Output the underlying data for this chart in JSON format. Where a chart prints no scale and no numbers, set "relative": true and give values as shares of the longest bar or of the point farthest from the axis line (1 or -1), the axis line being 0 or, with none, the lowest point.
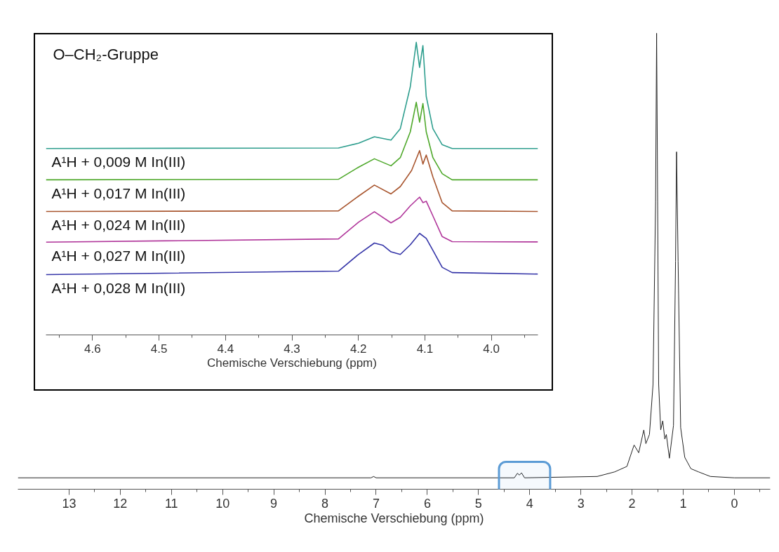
{
  "chart_data": [
    {
      "type": "line",
      "relative": true,
      "xlabel": "Chemische Verschiebung (ppm)",
      "xlim": [
        14.0,
        -0.7
      ],
      "tick_labels": "x",
      "xticks": [
        13,
        {
          "value": 12.5,
          "label": null
        },
        12,
        {
          "value": 11.5,
          "label": null
        },
        11,
        {
          "value": 10.5,
          "label": null
        },
        10,
        {
          "value": 9.5,
          "label": null
        },
        9,
        {
          "value": 8.5,
          "label": null
        },
        8,
        {
          "value": 7.5,
          "label": null
        },
        7,
        {
          "value": 6.5,
          "label": null
        },
        6,
        {
          "value": 5.5,
          "label": null
        },
        5,
        {
          "value": 4.5,
          "label": null
        },
        4,
        {
          "value": 3.5,
          "label": null
        },
        3,
        {
          "value": 2.5,
          "label": null
        },
        2,
        {
          "value": 1.5,
          "label": null
        },
        1,
        {
          "value": 0.5,
          "label": null
        },
        0,
        {
          "value": -0.5,
          "label": null
        }
      ],
      "bands": [
        {
          "axis": "x",
          "from": 4.6,
          "to": 3.6,
          "color": "#5b9bd5"
        }
      ],
      "series": [
        {
          "color": "#222222",
          "x": [
            14.0,
            7.1,
            7.05,
            7.0,
            4.3,
            4.24,
            4.2,
            4.16,
            4.1,
            2.68,
            2.34,
            2.1,
            1.96,
            1.87,
            1.77,
            1.73,
            1.66,
            1.59,
            1.54,
            1.52,
            1.5,
            1.48,
            1.44,
            1.4,
            1.36,
            1.33,
            1.27,
            1.19,
            1.15,
            1.13,
            1.1,
            1.05,
            0.97,
            0.85,
            0.7,
            0.47,
            0.0,
            -0.7
          ],
          "values": [
            0.025,
            0.025,
            0.028,
            0.025,
            0.025,
            0.035,
            0.031,
            0.036,
            0.025,
            0.028,
            0.038,
            0.05,
            0.097,
            0.08,
            0.13,
            0.1,
            0.12,
            0.23,
            0.63,
            1.0,
            0.63,
            0.23,
            0.13,
            0.15,
            0.11,
            0.12,
            0.068,
            0.14,
            0.5,
            0.74,
            0.5,
            0.135,
            0.07,
            0.045,
            0.038,
            0.028,
            0.025,
            0.025
          ]
        }
      ]
    },
    {
      "type": "line",
      "relative": true,
      "title": "O–CH₂-Gruppe",
      "xlabel": "Chemische Verschiebung (ppm)",
      "xlim": [
        4.67,
        3.93
      ],
      "tick_labels": "x",
      "xticks": [
        {
          "value": 4.65,
          "label": null
        },
        {
          "value": 4.6,
          "label": "4.6"
        },
        {
          "value": 4.55,
          "label": null
        },
        {
          "value": 4.5,
          "label": "4.5"
        },
        {
          "value": 4.45,
          "label": null
        },
        {
          "value": 4.4,
          "label": "4.4"
        },
        {
          "value": 4.35,
          "label": null
        },
        {
          "value": 4.3,
          "label": "4.3"
        },
        {
          "value": 4.25,
          "label": null
        },
        {
          "value": 4.2,
          "label": "4.2"
        },
        {
          "value": 4.15,
          "label": null
        },
        {
          "value": 4.1,
          "label": "4.1"
        },
        {
          "value": 4.05,
          "label": null
        },
        {
          "value": 4.0,
          "label": "4.0"
        },
        {
          "value": 3.95,
          "label": null
        }
      ],
      "series": [
        {
          "name": "A¹H + 0,009 M In(III)",
          "color": "#2e9e8e",
          "x": [
            4.67,
            4.23,
            4.2,
            4.176,
            4.151,
            4.137,
            4.122,
            4.113,
            4.108,
            4.103,
            4.098,
            4.088,
            4.074,
            4.059,
            3.93
          ],
          "values": [
            0.637,
            0.639,
            0.655,
            0.677,
            0.666,
            0.705,
            0.848,
            1.0,
            0.914,
            0.989,
            0.815,
            0.705,
            0.65,
            0.637,
            0.637
          ]
        },
        {
          "name": "A¹H + 0,017 M In(III)",
          "color": "#4ea82a",
          "x": [
            4.67,
            4.23,
            4.2,
            4.176,
            4.151,
            4.137,
            4.122,
            4.113,
            4.108,
            4.103,
            4.098,
            4.088,
            4.074,
            4.059,
            3.93
          ],
          "values": [
            0.53,
            0.532,
            0.573,
            0.602,
            0.578,
            0.606,
            0.694,
            0.795,
            0.727,
            0.791,
            0.694,
            0.606,
            0.551,
            0.53,
            0.53
          ]
        },
        {
          "name": "A¹H + 0,024 M In(III)",
          "color": "#a8552e",
          "x": [
            4.67,
            4.23,
            4.2,
            4.176,
            4.151,
            4.137,
            4.12,
            4.108,
            4.103,
            4.098,
            4.088,
            4.074,
            4.059,
            3.93
          ],
          "values": [
            0.422,
            0.424,
            0.474,
            0.512,
            0.482,
            0.507,
            0.562,
            0.63,
            0.584,
            0.615,
            0.54,
            0.452,
            0.424,
            0.422
          ]
        },
        {
          "name": "A¹H + 0,027 M In(III)",
          "color": "#b0359a",
          "x": [
            4.67,
            4.23,
            4.2,
            4.176,
            4.151,
            4.137,
            4.122,
            4.108,
            4.103,
            4.098,
            4.088,
            4.074,
            4.059,
            3.93
          ],
          "values": [
            0.317,
            0.328,
            0.385,
            0.421,
            0.383,
            0.402,
            0.441,
            0.471,
            0.452,
            0.457,
            0.407,
            0.336,
            0.319,
            0.318
          ]
        },
        {
          "name": "A¹H + 0,028 M In(III)",
          "color": "#3535a8",
          "x": [
            4.67,
            4.23,
            4.2,
            4.176,
            4.163,
            4.151,
            4.137,
            4.122,
            4.108,
            4.098,
            4.088,
            4.074,
            4.059,
            3.93
          ],
          "values": [
            0.206,
            0.218,
            0.275,
            0.314,
            0.306,
            0.284,
            0.275,
            0.308,
            0.347,
            0.33,
            0.289,
            0.231,
            0.213,
            0.208
          ]
        }
      ]
    }
  ]
}
